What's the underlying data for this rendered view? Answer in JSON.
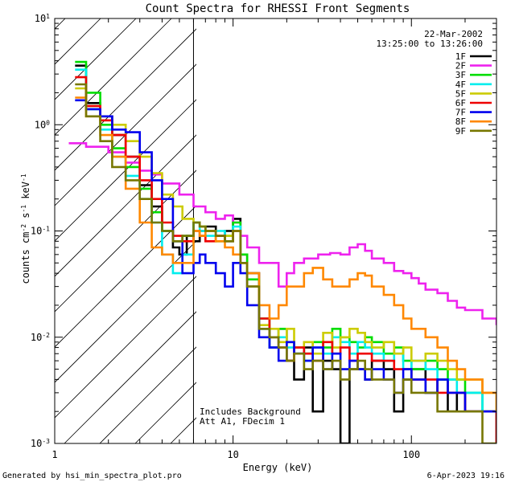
{
  "chart_data": {
    "type": "line",
    "title": "Count Spectra for RHESSI Front Segments",
    "xlabel": "Energy (keV)",
    "ylabel": "counts cm",
    "ylabel_parts": [
      "counts cm",
      "-2",
      " s",
      "-1",
      " keV",
      "-1"
    ],
    "xscale": "log",
    "yscale": "log",
    "xlim": [
      1,
      300
    ],
    "ylim": [
      0.001,
      10
    ],
    "x_ticks": [
      {
        "value": 1,
        "label": "1"
      },
      {
        "value": 10,
        "label": "10"
      },
      {
        "value": 100,
        "label": "100"
      }
    ],
    "y_ticks": [
      {
        "value": 0.001,
        "base": "10",
        "exp": "-3"
      },
      {
        "value": 0.01,
        "base": "10",
        "exp": "-2"
      },
      {
        "value": 0.1,
        "base": "10",
        "exp": "-1"
      },
      {
        "value": 1,
        "base": "10",
        "exp": "0"
      },
      {
        "value": 10,
        "base": "10",
        "exp": "1"
      }
    ],
    "hatched_region": [
      1,
      6
    ],
    "vertical_line_x": 6,
    "date": "22-Mar-2002",
    "time_range": "13:25:00 to 13:26:00",
    "annotations": [
      "Includes Background",
      "Att A1, FDecim 1"
    ],
    "footer_left": "Generated by hsi_min_spectra_plot.pro",
    "footer_right": "6-Apr-2023 19:16",
    "series": [
      {
        "name": "1F",
        "color": "#000000",
        "x": [
          1.3,
          1.5,
          1.8,
          2.1,
          2.5,
          3.0,
          3.5,
          4.0,
          4.6,
          5.0,
          5.5,
          6.0,
          6.5,
          7,
          8,
          9,
          10,
          11,
          12,
          14,
          16,
          18,
          20,
          22,
          25,
          28,
          32,
          36,
          40,
          45,
          50,
          55,
          60,
          70,
          80,
          90,
          100,
          120,
          140,
          160,
          180,
          200,
          250,
          300
        ],
        "y": [
          3.6,
          1.6,
          1.2,
          0.8,
          0.5,
          0.27,
          0.17,
          0.1,
          0.07,
          0.06,
          0.09,
          0.08,
          0.1,
          0.11,
          0.09,
          0.1,
          0.13,
          0.06,
          0.04,
          0.012,
          0.008,
          0.012,
          0.006,
          0.004,
          0.008,
          0.002,
          0.006,
          0.005,
          0.001,
          0.005,
          0.005,
          0.004,
          0.006,
          0.005,
          0.002,
          0.004,
          0.005,
          0.003,
          0.004,
          0.002,
          0.003,
          0.002,
          0.002,
          0.001
        ]
      },
      {
        "name": "2F",
        "color": "#ee22ee",
        "x": [
          1.2,
          1.5,
          2.0,
          2.5,
          3.0,
          3.5,
          4.0,
          5.0,
          6.0,
          7.0,
          8,
          9,
          10,
          11,
          12,
          14,
          16,
          18,
          20,
          22,
          25,
          30,
          35,
          40,
          45,
          50,
          55,
          60,
          70,
          80,
          90,
          100,
          110,
          120,
          140,
          160,
          180,
          200,
          250,
          300
        ],
        "y": [
          0.67,
          0.62,
          0.55,
          0.44,
          0.37,
          0.34,
          0.28,
          0.22,
          0.17,
          0.15,
          0.13,
          0.14,
          0.12,
          0.09,
          0.07,
          0.05,
          0.05,
          0.03,
          0.04,
          0.05,
          0.055,
          0.06,
          0.062,
          0.06,
          0.07,
          0.075,
          0.065,
          0.055,
          0.05,
          0.042,
          0.04,
          0.036,
          0.032,
          0.028,
          0.026,
          0.022,
          0.019,
          0.018,
          0.015,
          0.013
        ]
      },
      {
        "name": "3F",
        "color": "#00dd00",
        "x": [
          1.3,
          1.5,
          1.8,
          2.1,
          2.5,
          3.0,
          3.5,
          4.0,
          4.6,
          5.2,
          6.0,
          6.5,
          7,
          8,
          9,
          10,
          11,
          12,
          14,
          16,
          18,
          20,
          22,
          25,
          28,
          32,
          36,
          40,
          45,
          50,
          55,
          60,
          70,
          80,
          90,
          100,
          120,
          140,
          160,
          180,
          200,
          250,
          300
        ],
        "y": [
          3.9,
          2.0,
          1.0,
          0.6,
          0.4,
          0.25,
          0.15,
          0.1,
          0.08,
          0.09,
          0.12,
          0.11,
          0.1,
          0.08,
          0.09,
          0.12,
          0.06,
          0.035,
          0.015,
          0.01,
          0.012,
          0.009,
          0.008,
          0.007,
          0.009,
          0.008,
          0.012,
          0.01,
          0.009,
          0.008,
          0.01,
          0.009,
          0.007,
          0.008,
          0.006,
          0.005,
          0.006,
          0.005,
          0.004,
          0.004,
          0.003,
          0.002,
          0.002
        ]
      },
      {
        "name": "4F",
        "color": "#00eeee",
        "x": [
          1.3,
          1.5,
          1.8,
          2.1,
          2.5,
          3.0,
          3.5,
          4.0,
          4.6,
          5.2,
          6.0,
          6.5,
          7,
          8,
          9,
          10,
          11,
          12,
          14,
          16,
          18,
          20,
          22,
          25,
          28,
          32,
          36,
          40,
          45,
          50,
          55,
          60,
          70,
          80,
          90,
          100,
          120,
          140,
          160,
          180,
          200,
          250,
          300
        ],
        "y": [
          3.3,
          1.4,
          0.9,
          0.5,
          0.33,
          0.2,
          0.12,
          0.06,
          0.04,
          0.06,
          0.12,
          0.1,
          0.09,
          0.1,
          0.08,
          0.11,
          0.05,
          0.03,
          0.012,
          0.008,
          0.01,
          0.008,
          0.007,
          0.006,
          0.008,
          0.007,
          0.01,
          0.009,
          0.007,
          0.009,
          0.008,
          0.007,
          0.006,
          0.007,
          0.005,
          0.006,
          0.005,
          0.004,
          0.004,
          0.003,
          0.003,
          0.002,
          0.002
        ]
      },
      {
        "name": "5F",
        "color": "#cccc00",
        "x": [
          1.3,
          1.5,
          1.8,
          2.1,
          2.5,
          3.0,
          3.5,
          4.0,
          4.6,
          5.2,
          6.0,
          6.5,
          7,
          8,
          9,
          10,
          11,
          12,
          14,
          16,
          18,
          20,
          22,
          25,
          28,
          32,
          36,
          40,
          45,
          50,
          55,
          60,
          70,
          80,
          90,
          100,
          120,
          140,
          160,
          180,
          200,
          250,
          300
        ],
        "y": [
          2.2,
          1.5,
          1.1,
          1.0,
          0.7,
          0.5,
          0.35,
          0.22,
          0.17,
          0.13,
          0.12,
          0.11,
          0.1,
          0.09,
          0.09,
          0.1,
          0.05,
          0.03,
          0.013,
          0.012,
          0.009,
          0.012,
          0.008,
          0.009,
          0.007,
          0.011,
          0.008,
          0.01,
          0.012,
          0.011,
          0.009,
          0.008,
          0.009,
          0.007,
          0.008,
          0.006,
          0.007,
          0.006,
          0.005,
          0.004,
          0.004,
          0.003,
          0.002
        ]
      },
      {
        "name": "6F",
        "color": "#ee0000",
        "x": [
          1.3,
          1.5,
          1.8,
          2.1,
          2.5,
          3.0,
          3.5,
          4.0,
          4.6,
          5.2,
          6.0,
          6.5,
          7,
          8,
          9,
          10,
          11,
          12,
          14,
          16,
          18,
          20,
          22,
          25,
          28,
          32,
          36,
          40,
          45,
          50,
          55,
          60,
          70,
          80,
          90,
          100,
          120,
          140,
          160,
          180,
          200,
          250,
          300
        ],
        "y": [
          2.8,
          1.5,
          1.1,
          0.8,
          0.5,
          0.3,
          0.2,
          0.12,
          0.09,
          0.08,
          0.1,
          0.09,
          0.08,
          0.09,
          0.08,
          0.1,
          0.05,
          0.03,
          0.015,
          0.01,
          0.008,
          0.006,
          0.008,
          0.007,
          0.006,
          0.009,
          0.007,
          0.008,
          0.006,
          0.007,
          0.007,
          0.006,
          0.006,
          0.005,
          0.005,
          0.004,
          0.004,
          0.003,
          0.003,
          0.003,
          0.002,
          0.002,
          0.001
        ]
      },
      {
        "name": "7F",
        "color": "#0000ee",
        "x": [
          1.3,
          1.5,
          1.8,
          2.1,
          2.5,
          3.0,
          3.5,
          4.0,
          4.6,
          5.2,
          6.0,
          6.5,
          7,
          8,
          9,
          10,
          11,
          12,
          14,
          16,
          18,
          20,
          22,
          25,
          28,
          32,
          36,
          40,
          45,
          50,
          55,
          60,
          70,
          80,
          90,
          100,
          120,
          140,
          160,
          180,
          200,
          250,
          300
        ],
        "y": [
          1.7,
          1.4,
          1.2,
          0.9,
          0.85,
          0.55,
          0.3,
          0.2,
          0.08,
          0.04,
          0.05,
          0.06,
          0.05,
          0.04,
          0.03,
          0.05,
          0.04,
          0.02,
          0.01,
          0.008,
          0.006,
          0.009,
          0.007,
          0.006,
          0.008,
          0.005,
          0.007,
          0.005,
          0.006,
          0.005,
          0.004,
          0.005,
          0.004,
          0.003,
          0.005,
          0.004,
          0.003,
          0.004,
          0.003,
          0.003,
          0.002,
          0.002,
          0.002
        ]
      },
      {
        "name": "8F",
        "color": "#ff8800",
        "x": [
          1.3,
          1.5,
          1.8,
          2.1,
          2.5,
          3.0,
          3.5,
          4.0,
          4.6,
          5.2,
          6.0,
          6.5,
          7,
          8,
          9,
          10,
          11,
          12,
          14,
          16,
          18,
          20,
          22,
          25,
          28,
          32,
          36,
          40,
          45,
          50,
          55,
          60,
          70,
          80,
          90,
          100,
          120,
          140,
          160,
          180,
          200,
          250,
          300
        ],
        "y": [
          1.8,
          1.2,
          0.8,
          0.5,
          0.25,
          0.12,
          0.07,
          0.06,
          0.05,
          0.05,
          0.1,
          0.09,
          0.1,
          0.08,
          0.07,
          0.06,
          0.05,
          0.04,
          0.02,
          0.015,
          0.02,
          0.03,
          0.03,
          0.04,
          0.045,
          0.035,
          0.03,
          0.03,
          0.035,
          0.04,
          0.038,
          0.03,
          0.025,
          0.02,
          0.015,
          0.012,
          0.01,
          0.008,
          0.006,
          0.005,
          0.004,
          0.003,
          0.002
        ]
      },
      {
        "name": "9F",
        "color": "#777700",
        "x": [
          1.3,
          1.5,
          1.8,
          2.1,
          2.5,
          3.0,
          3.5,
          4.0,
          4.6,
          5.2,
          6.0,
          6.5,
          7,
          8,
          9,
          10,
          11,
          12,
          14,
          16,
          18,
          20,
          22,
          25,
          28,
          32,
          36,
          40,
          45,
          50,
          55,
          60,
          70,
          80,
          90,
          100,
          120,
          140,
          160,
          180,
          200,
          250,
          300
        ],
        "y": [
          2.4,
          1.2,
          0.7,
          0.4,
          0.3,
          0.2,
          0.12,
          0.1,
          0.08,
          0.09,
          0.12,
          0.11,
          0.1,
          0.09,
          0.08,
          0.1,
          0.05,
          0.03,
          0.012,
          0.01,
          0.008,
          0.006,
          0.007,
          0.005,
          0.006,
          0.005,
          0.006,
          0.004,
          0.005,
          0.006,
          0.005,
          0.004,
          0.004,
          0.003,
          0.004,
          0.003,
          0.003,
          0.002,
          0.002,
          0.002,
          0.002,
          0.001,
          0.001
        ]
      }
    ]
  }
}
